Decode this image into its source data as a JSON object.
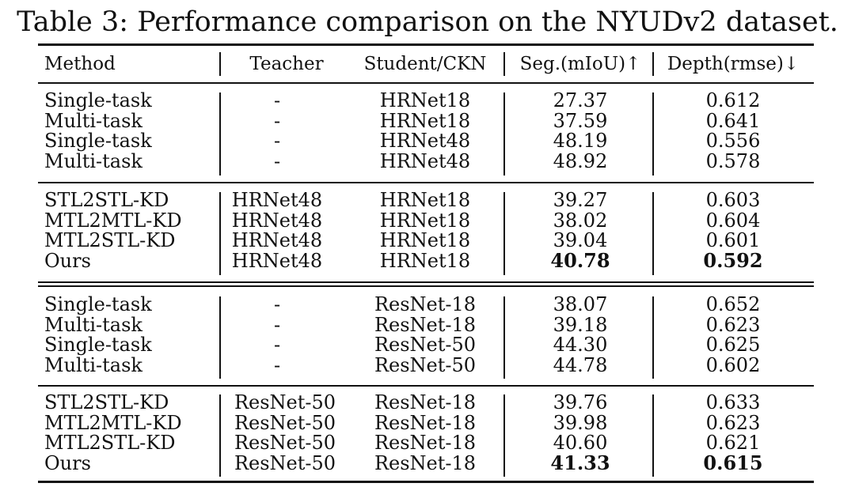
{
  "caption": "Table 3: Performance comparison on the NYUDv2 dataset.",
  "table": {
    "headers": {
      "method": "Method",
      "teacher": "Teacher",
      "student": "Student/CKN",
      "seg": "Seg.(mIoU)↑",
      "depth": "Depth(rmse)↓"
    },
    "groups": [
      {
        "rows": [
          {
            "method": "Single-task",
            "teacher": "-",
            "student": "HRNet18",
            "seg": "27.37",
            "depth": "0.612"
          },
          {
            "method": "Multi-task",
            "teacher": "-",
            "student": "HRNet18",
            "seg": "37.59",
            "depth": "0.641"
          },
          {
            "method": "Single-task",
            "teacher": "-",
            "student": "HRNet48",
            "seg": "48.19",
            "depth": "0.556"
          },
          {
            "method": "Multi-task",
            "teacher": "-",
            "student": "HRNet48",
            "seg": "48.92",
            "depth": "0.578"
          }
        ]
      },
      {
        "rows": [
          {
            "method": "STL2STL-KD",
            "teacher": "HRNet48",
            "student": "HRNet18",
            "seg": "39.27",
            "depth": "0.603"
          },
          {
            "method": "MTL2MTL-KD",
            "teacher": "HRNet48",
            "student": "HRNet18",
            "seg": "38.02",
            "depth": "0.604"
          },
          {
            "method": "MTL2STL-KD",
            "teacher": "HRNet48",
            "student": "HRNet18",
            "seg": "39.04",
            "depth": "0.601"
          },
          {
            "method": "Ours",
            "teacher": "HRNet48",
            "student": "HRNet18",
            "seg": "40.78",
            "depth": "0.592",
            "best": true
          }
        ]
      },
      {
        "rows": [
          {
            "method": "Single-task",
            "teacher": "-",
            "student": "ResNet-18",
            "seg": "38.07",
            "depth": "0.652"
          },
          {
            "method": "Multi-task",
            "teacher": "-",
            "student": "ResNet-18",
            "seg": "39.18",
            "depth": "0.623"
          },
          {
            "method": "Single-task",
            "teacher": "-",
            "student": "ResNet-50",
            "seg": "44.30",
            "depth": "0.625"
          },
          {
            "method": "Multi-task",
            "teacher": "-",
            "student": "ResNet-50",
            "seg": "44.78",
            "depth": "0.602"
          }
        ]
      },
      {
        "rows": [
          {
            "method": "STL2STL-KD",
            "teacher": "ResNet-50",
            "student": "ResNet-18",
            "seg": "39.76",
            "depth": "0.633"
          },
          {
            "method": "MTL2MTL-KD",
            "teacher": "ResNet-50",
            "student": "ResNet-18",
            "seg": "39.98",
            "depth": "0.623"
          },
          {
            "method": "MTL2STL-KD",
            "teacher": "ResNet-50",
            "student": "ResNet-18",
            "seg": "40.60",
            "depth": "0.621"
          },
          {
            "method": "Ours",
            "teacher": "ResNet-50",
            "student": "ResNet-18",
            "seg": "41.33",
            "depth": "0.615",
            "best": true
          }
        ]
      }
    ]
  }
}
